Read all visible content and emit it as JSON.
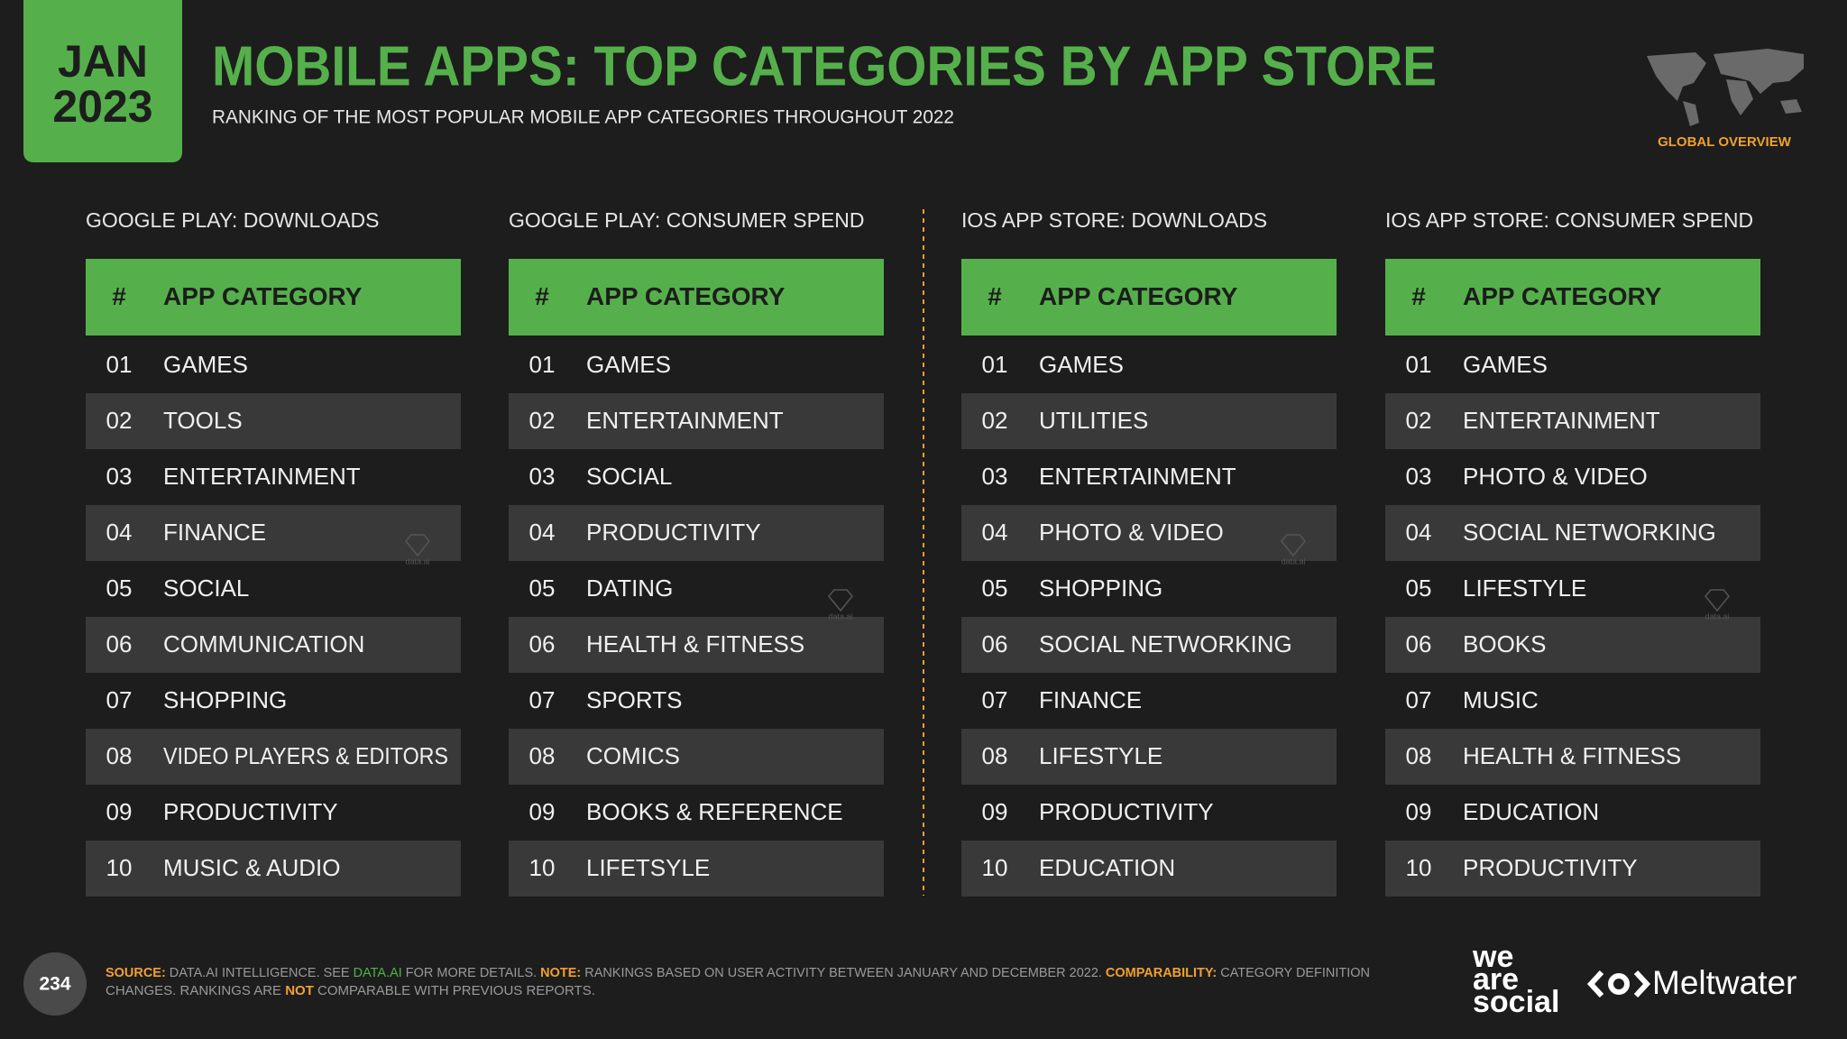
{
  "header": {
    "month": "JAN",
    "year": "2023",
    "title": "MOBILE APPS: TOP CATEGORIES BY APP STORE",
    "subtitle": "RANKING OF THE MOST POPULAR MOBILE APP CATEGORIES THROUGHOUT 2022",
    "region": "GLOBAL OVERVIEW"
  },
  "tables": [
    {
      "title": "GOOGLE PLAY: DOWNLOADS",
      "columns": [
        "#",
        "APP CATEGORY"
      ],
      "rows": [
        [
          "01",
          "GAMES"
        ],
        [
          "02",
          "TOOLS"
        ],
        [
          "03",
          "ENTERTAINMENT"
        ],
        [
          "04",
          "FINANCE"
        ],
        [
          "05",
          "SOCIAL"
        ],
        [
          "06",
          "COMMUNICATION"
        ],
        [
          "07",
          "SHOPPING"
        ],
        [
          "08",
          "VIDEO PLAYERS & EDITORS"
        ],
        [
          "09",
          "PRODUCTIVITY"
        ],
        [
          "10",
          "MUSIC & AUDIO"
        ]
      ]
    },
    {
      "title": "GOOGLE PLAY: CONSUMER SPEND",
      "columns": [
        "#",
        "APP CATEGORY"
      ],
      "rows": [
        [
          "01",
          "GAMES"
        ],
        [
          "02",
          "ENTERTAINMENT"
        ],
        [
          "03",
          "SOCIAL"
        ],
        [
          "04",
          "PRODUCTIVITY"
        ],
        [
          "05",
          "DATING"
        ],
        [
          "06",
          "HEALTH & FITNESS"
        ],
        [
          "07",
          "SPORTS"
        ],
        [
          "08",
          "COMICS"
        ],
        [
          "09",
          "BOOKS & REFERENCE"
        ],
        [
          "10",
          "LIFETSYLE"
        ]
      ]
    },
    {
      "title": "IOS APP STORE: DOWNLOADS",
      "columns": [
        "#",
        "APP CATEGORY"
      ],
      "rows": [
        [
          "01",
          "GAMES"
        ],
        [
          "02",
          "UTILITIES"
        ],
        [
          "03",
          "ENTERTAINMENT"
        ],
        [
          "04",
          "PHOTO & VIDEO"
        ],
        [
          "05",
          "SHOPPING"
        ],
        [
          "06",
          "SOCIAL NETWORKING"
        ],
        [
          "07",
          "FINANCE"
        ],
        [
          "08",
          "LIFESTYLE"
        ],
        [
          "09",
          "PRODUCTIVITY"
        ],
        [
          "10",
          "EDUCATION"
        ]
      ]
    },
    {
      "title": "IOS APP STORE: CONSUMER SPEND",
      "columns": [
        "#",
        "APP CATEGORY"
      ],
      "rows": [
        [
          "01",
          "GAMES"
        ],
        [
          "02",
          "ENTERTAINMENT"
        ],
        [
          "03",
          "PHOTO & VIDEO"
        ],
        [
          "04",
          "SOCIAL NETWORKING"
        ],
        [
          "05",
          "LIFESTYLE"
        ],
        [
          "06",
          "BOOKS"
        ],
        [
          "07",
          "MUSIC"
        ],
        [
          "08",
          "HEALTH & FITNESS"
        ],
        [
          "09",
          "EDUCATION"
        ],
        [
          "10",
          "PRODUCTIVITY"
        ]
      ]
    }
  ],
  "watermark": "data.ai",
  "footer": {
    "page": "234",
    "lines": [
      [
        {
          "text": "SOURCE:",
          "style": "label"
        },
        {
          "text": " DATA.AI INTELLIGENCE. SEE ",
          "style": "plain"
        },
        {
          "text": "DATA.AI",
          "style": "link"
        },
        {
          "text": " FOR MORE DETAILS. ",
          "style": "plain"
        },
        {
          "text": "NOTE:",
          "style": "label"
        },
        {
          "text": " RANKINGS BASED ON USER ACTIVITY BETWEEN JANUARY AND DECEMBER 2022. ",
          "style": "plain"
        },
        {
          "text": "COMPARABILITY:",
          "style": "label"
        },
        {
          "text": " CATEGORY DEFINITION",
          "style": "plain"
        }
      ],
      [
        {
          "text": "CHANGES. RANKINGS ARE ",
          "style": "plain"
        },
        {
          "text": "NOT",
          "style": "label"
        },
        {
          "text": " COMPARABLE WITH PREVIOUS REPORTS.",
          "style": "plain"
        }
      ]
    ],
    "logo_words": [
      "we",
      "are",
      "social"
    ],
    "partner": "Meltwater"
  }
}
